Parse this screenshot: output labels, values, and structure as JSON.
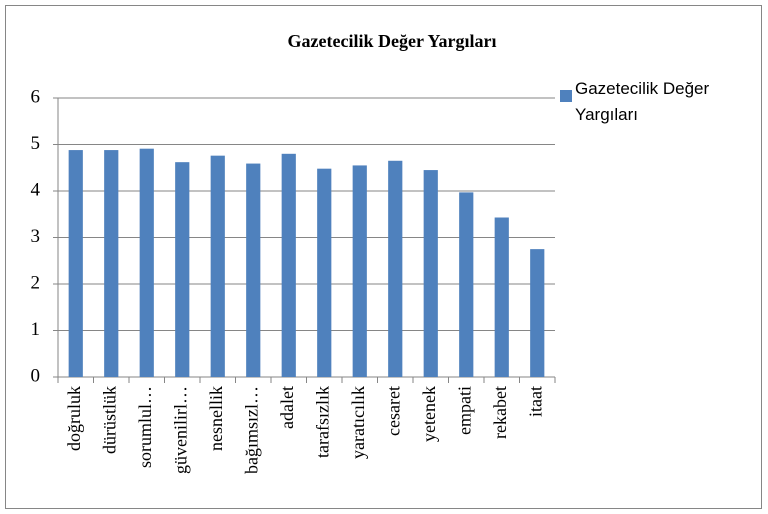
{
  "chart_data": {
    "type": "bar",
    "title": "Gazetecilik Değer Yargıları",
    "categories": [
      "doğruluk",
      "dürüstlük",
      "sorumlul…",
      "güvenilirl…",
      "nesnellik",
      "bağımsızl…",
      "adalet",
      "tarafsızlık",
      "yaratıcılık",
      "cesaret",
      "yetenek",
      "empati",
      "rekabet",
      "itaat"
    ],
    "series": [
      {
        "name": "Gazetecilik Değer Yargıları",
        "color": "#4f81bd",
        "values": [
          4.88,
          4.88,
          4.91,
          4.62,
          4.76,
          4.59,
          4.8,
          4.48,
          4.55,
          4.65,
          4.45,
          3.97,
          3.43,
          2.75
        ]
      }
    ],
    "ylim": [
      0,
      6
    ],
    "yticks": [
      0,
      1,
      2,
      3,
      4,
      5,
      6
    ],
    "grid": true,
    "legend": "right"
  }
}
